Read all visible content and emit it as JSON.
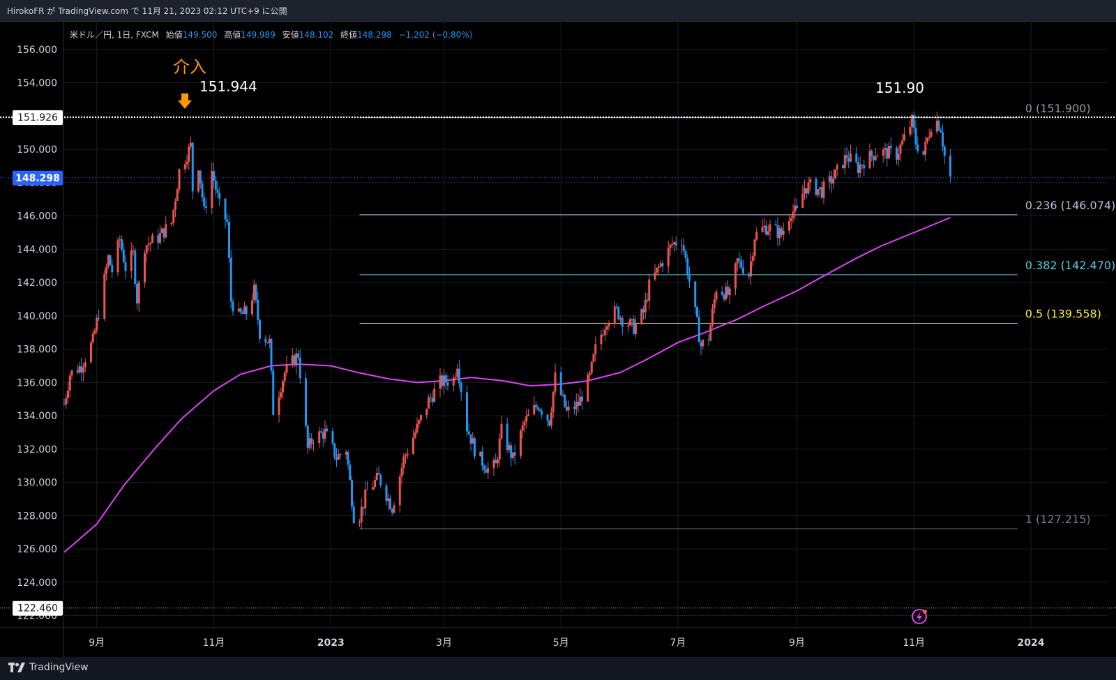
{
  "header": {
    "publish_line": "HirokoFR が TradingView.com で 11月 21, 2023 02:12 UTC+9 に公開"
  },
  "legend": {
    "symbol": "米ドル／円, 1日, FXCM",
    "open_label": "始値",
    "open": "149.500",
    "high_label": "高値",
    "high": "149.989",
    "low_label": "安値",
    "low": "148.102",
    "close_label": "終値",
    "close": "148.298",
    "change": "−1.202 (−0.80%)"
  },
  "annotations": {
    "intervention": "介入",
    "peak_2022": "151.944",
    "peak_2023": "151.90"
  },
  "footer": {
    "brand": "TradingView"
  },
  "colors": {
    "up": "#ef5350",
    "down": "#2196f3",
    "ma": "#e040fb",
    "fib_0": "#9598a1",
    "fib_236": "#b2c5da",
    "fib_382": "#4dd0e1",
    "fib_5": "#ffeb3b",
    "fib_1": "#787b86",
    "arrow": "#ff9800"
  },
  "chart_data": {
    "type": "candlestick",
    "symbol": "米ドル／円",
    "timeframe": "1日",
    "source": "FXCM",
    "y_ticks": [
      "156.000",
      "154.000",
      "152.000",
      "150.000",
      "148.000",
      "146.000",
      "144.000",
      "142.000",
      "140.000",
      "138.000",
      "136.000",
      "134.000",
      "132.000",
      "130.000",
      "128.000",
      "126.000",
      "124.000",
      "122.000"
    ],
    "ylim": [
      121.4,
      157.0
    ],
    "x_labels": [
      {
        "label": "9月",
        "date": "2022-09-01"
      },
      {
        "label": "11月",
        "date": "2022-11-01"
      },
      {
        "label": "2023",
        "date": "2023-01-01"
      },
      {
        "label": "3月",
        "date": "2023-03-01"
      },
      {
        "label": "5月",
        "date": "2023-05-01"
      },
      {
        "label": "7月",
        "date": "2023-07-01"
      },
      {
        "label": "9月",
        "date": "2023-09-01"
      },
      {
        "label": "11月",
        "date": "2023-11-01"
      },
      {
        "label": "2024",
        "date": "2024-01-01"
      }
    ],
    "price_markers": [
      {
        "label": "151.926",
        "value": 151.926,
        "style": "dotted-white"
      },
      {
        "label": "148.298",
        "value": 148.298,
        "style": "current-blue"
      },
      {
        "label": "122.460",
        "value": 122.46,
        "style": "dotted-gray"
      }
    ],
    "fibonacci": {
      "from_date": "2023-01-16",
      "to_date": "2023-12-25",
      "levels": [
        {
          "label": "0 (151.900)",
          "value": 151.9,
          "color": "#9598a1"
        },
        {
          "label": "0.236 (146.074)",
          "value": 146.074,
          "color": "#b2c5da"
        },
        {
          "label": "0.382 (142.470)",
          "value": 142.47,
          "color": "#4dd0e1"
        },
        {
          "label": "0.5 (139.558)",
          "value": 139.558,
          "color": "#ffeb3b"
        },
        {
          "label": "1 (127.215)",
          "value": 127.215,
          "color": "#787b86"
        }
      ]
    },
    "price_path": [
      [
        "2022-08-15",
        134.7
      ],
      [
        "2022-08-18",
        136.5
      ],
      [
        "2022-08-24",
        137.0
      ],
      [
        "2022-08-30",
        138.5
      ],
      [
        "2022-09-02",
        140.2
      ],
      [
        "2022-09-07",
        143.5
      ],
      [
        "2022-09-09",
        142.7
      ],
      [
        "2022-09-13",
        144.6
      ],
      [
        "2022-09-16",
        142.9
      ],
      [
        "2022-09-20",
        143.7
      ],
      [
        "2022-09-22",
        141.0
      ],
      [
        "2022-09-26",
        144.2
      ],
      [
        "2022-10-03",
        144.7
      ],
      [
        "2022-10-10",
        145.6
      ],
      [
        "2022-10-14",
        148.7
      ],
      [
        "2022-10-20",
        150.2
      ],
      [
        "2022-10-21",
        147.6
      ],
      [
        "2022-10-24",
        149.1
      ],
      [
        "2022-10-27",
        146.2
      ],
      [
        "2022-10-31",
        148.7
      ],
      [
        "2022-11-04",
        146.6
      ],
      [
        "2022-11-08",
        145.6
      ],
      [
        "2022-11-10",
        140.9
      ],
      [
        "2022-11-14",
        140.0
      ],
      [
        "2022-11-18",
        140.2
      ],
      [
        "2022-11-22",
        141.5
      ],
      [
        "2022-11-25",
        139.0
      ],
      [
        "2022-11-30",
        138.4
      ],
      [
        "2022-12-02",
        134.3
      ],
      [
        "2022-12-08",
        136.6
      ],
      [
        "2022-12-15",
        137.7
      ],
      [
        "2022-12-20",
        132.0
      ],
      [
        "2022-12-23",
        132.7
      ],
      [
        "2022-12-29",
        133.0
      ],
      [
        "2023-01-04",
        131.5
      ],
      [
        "2023-01-09",
        132.0
      ],
      [
        "2023-01-13",
        128.0
      ],
      [
        "2023-01-16",
        128.0
      ],
      [
        "2023-01-20",
        129.5
      ],
      [
        "2023-01-26",
        130.3
      ],
      [
        "2023-02-02",
        128.5
      ],
      [
        "2023-02-08",
        131.4
      ],
      [
        "2023-02-14",
        133.0
      ],
      [
        "2023-02-21",
        134.9
      ],
      [
        "2023-02-27",
        136.0
      ],
      [
        "2023-03-06",
        136.2
      ],
      [
        "2023-03-08",
        137.2
      ],
      [
        "2023-03-13",
        133.3
      ],
      [
        "2023-03-17",
        132.0
      ],
      [
        "2023-03-20",
        131.4
      ],
      [
        "2023-03-24",
        130.8
      ],
      [
        "2023-03-28",
        131.0
      ],
      [
        "2023-03-31",
        133.1
      ],
      [
        "2023-04-06",
        131.4
      ],
      [
        "2023-04-12",
        133.6
      ],
      [
        "2023-04-19",
        134.7
      ],
      [
        "2023-04-25",
        133.7
      ],
      [
        "2023-04-28",
        136.3
      ],
      [
        "2023-05-04",
        134.2
      ],
      [
        "2023-05-10",
        134.7
      ],
      [
        "2023-05-16",
        136.3
      ],
      [
        "2023-05-19",
        138.0
      ],
      [
        "2023-05-25",
        139.8
      ],
      [
        "2023-05-30",
        140.3
      ],
      [
        "2023-06-02",
        139.8
      ],
      [
        "2023-06-08",
        139.3
      ],
      [
        "2023-06-13",
        140.2
      ],
      [
        "2023-06-16",
        141.8
      ],
      [
        "2023-06-22",
        143.1
      ],
      [
        "2023-06-28",
        144.3
      ],
      [
        "2023-07-03",
        144.6
      ],
      [
        "2023-07-07",
        142.1
      ],
      [
        "2023-07-13",
        138.2
      ],
      [
        "2023-07-17",
        138.7
      ],
      [
        "2023-07-21",
        141.7
      ],
      [
        "2023-07-28",
        141.2
      ],
      [
        "2023-08-01",
        143.3
      ],
      [
        "2023-08-07",
        142.5
      ],
      [
        "2023-08-10",
        144.8
      ],
      [
        "2023-08-15",
        145.3
      ],
      [
        "2023-08-18",
        145.3
      ],
      [
        "2023-08-24",
        144.9
      ],
      [
        "2023-08-29",
        146.3
      ],
      [
        "2023-09-01",
        146.2
      ],
      [
        "2023-09-05",
        147.7
      ],
      [
        "2023-09-08",
        147.8
      ],
      [
        "2023-09-14",
        147.5
      ],
      [
        "2023-09-20",
        148.3
      ],
      [
        "2023-09-27",
        149.6
      ],
      [
        "2023-10-03",
        148.9
      ],
      [
        "2023-10-06",
        149.3
      ],
      [
        "2023-10-12",
        149.8
      ],
      [
        "2023-10-18",
        149.8
      ],
      [
        "2023-10-23",
        149.7
      ],
      [
        "2023-10-26",
        150.4
      ],
      [
        "2023-10-31",
        151.7
      ],
      [
        "2023-11-02",
        150.4
      ],
      [
        "2023-11-06",
        149.7
      ],
      [
        "2023-11-10",
        151.5
      ],
      [
        "2023-11-13",
        151.7
      ],
      [
        "2023-11-15",
        151.3
      ],
      [
        "2023-11-17",
        149.6
      ],
      [
        "2023-11-20",
        148.298
      ]
    ],
    "ma_series": [
      [
        "2022-08-15",
        125.8
      ],
      [
        "2022-09-01",
        127.5
      ],
      [
        "2022-09-15",
        129.8
      ],
      [
        "2022-10-01",
        132.0
      ],
      [
        "2022-10-15",
        133.8
      ],
      [
        "2022-11-01",
        135.5
      ],
      [
        "2022-11-15",
        136.5
      ],
      [
        "2022-12-01",
        137.0
      ],
      [
        "2022-12-15",
        137.1
      ],
      [
        "2023-01-01",
        137.0
      ],
      [
        "2023-01-15",
        136.6
      ],
      [
        "2023-02-01",
        136.2
      ],
      [
        "2023-02-15",
        136.0
      ],
      [
        "2023-03-01",
        136.1
      ],
      [
        "2023-03-15",
        136.3
      ],
      [
        "2023-04-01",
        136.1
      ],
      [
        "2023-04-15",
        135.8
      ],
      [
        "2023-05-01",
        135.9
      ],
      [
        "2023-05-15",
        136.1
      ],
      [
        "2023-06-01",
        136.6
      ],
      [
        "2023-06-15",
        137.4
      ],
      [
        "2023-07-01",
        138.4
      ],
      [
        "2023-07-15",
        139.0
      ],
      [
        "2023-08-01",
        139.8
      ],
      [
        "2023-08-15",
        140.6
      ],
      [
        "2023-09-01",
        141.5
      ],
      [
        "2023-09-15",
        142.4
      ],
      [
        "2023-10-01",
        143.4
      ],
      [
        "2023-10-15",
        144.2
      ],
      [
        "2023-11-01",
        145.0
      ],
      [
        "2023-11-20",
        145.9
      ]
    ]
  }
}
